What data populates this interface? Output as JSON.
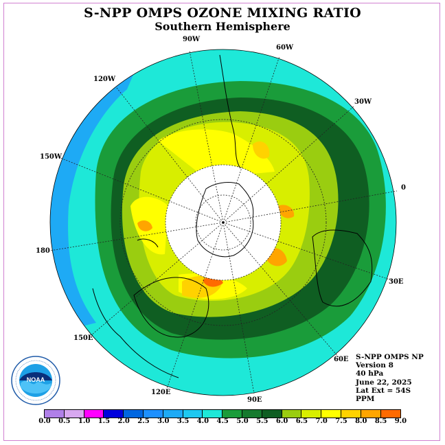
{
  "title": "S-NPP OMPS OZONE MIXING RATIO",
  "subtitle": "Southern Hemisphere",
  "longitude_labels": [
    "90W",
    "60W",
    "30W",
    "0",
    "30E",
    "60E",
    "90E",
    "120E",
    "150E",
    "180",
    "150W",
    "120W"
  ],
  "info": {
    "instrument": "S-NPP OMPS NP",
    "version": "Version 8",
    "level": "40 hPa",
    "date": "June 22, 2025",
    "lat_ext": "Lat Ext = 54S",
    "units": "PPM"
  },
  "colorbar": {
    "ticks": [
      "0.0",
      "0.5",
      "1.0",
      "1.5",
      "2.0",
      "2.5",
      "3.0",
      "3.5",
      "4.0",
      "4.5",
      "5.0",
      "5.5",
      "6.0",
      "6.5",
      "7.0",
      "7.5",
      "8.0",
      "8.5",
      "9.0"
    ],
    "colors": [
      "#b080e8",
      "#d8a8f0",
      "#ff00ff",
      "#0000dd",
      "#0066e0",
      "#1e90ff",
      "#1eaaf5",
      "#1ec8f0",
      "#1ee8d8",
      "#1a9c3a",
      "#167a2e",
      "#0f5e22",
      "#9acd10",
      "#d8ee00",
      "#ffff00",
      "#ffd200",
      "#ffa500",
      "#ff6a00",
      "#ff0000",
      "#8b5a3c"
    ]
  },
  "logo_text": "NOAA"
}
